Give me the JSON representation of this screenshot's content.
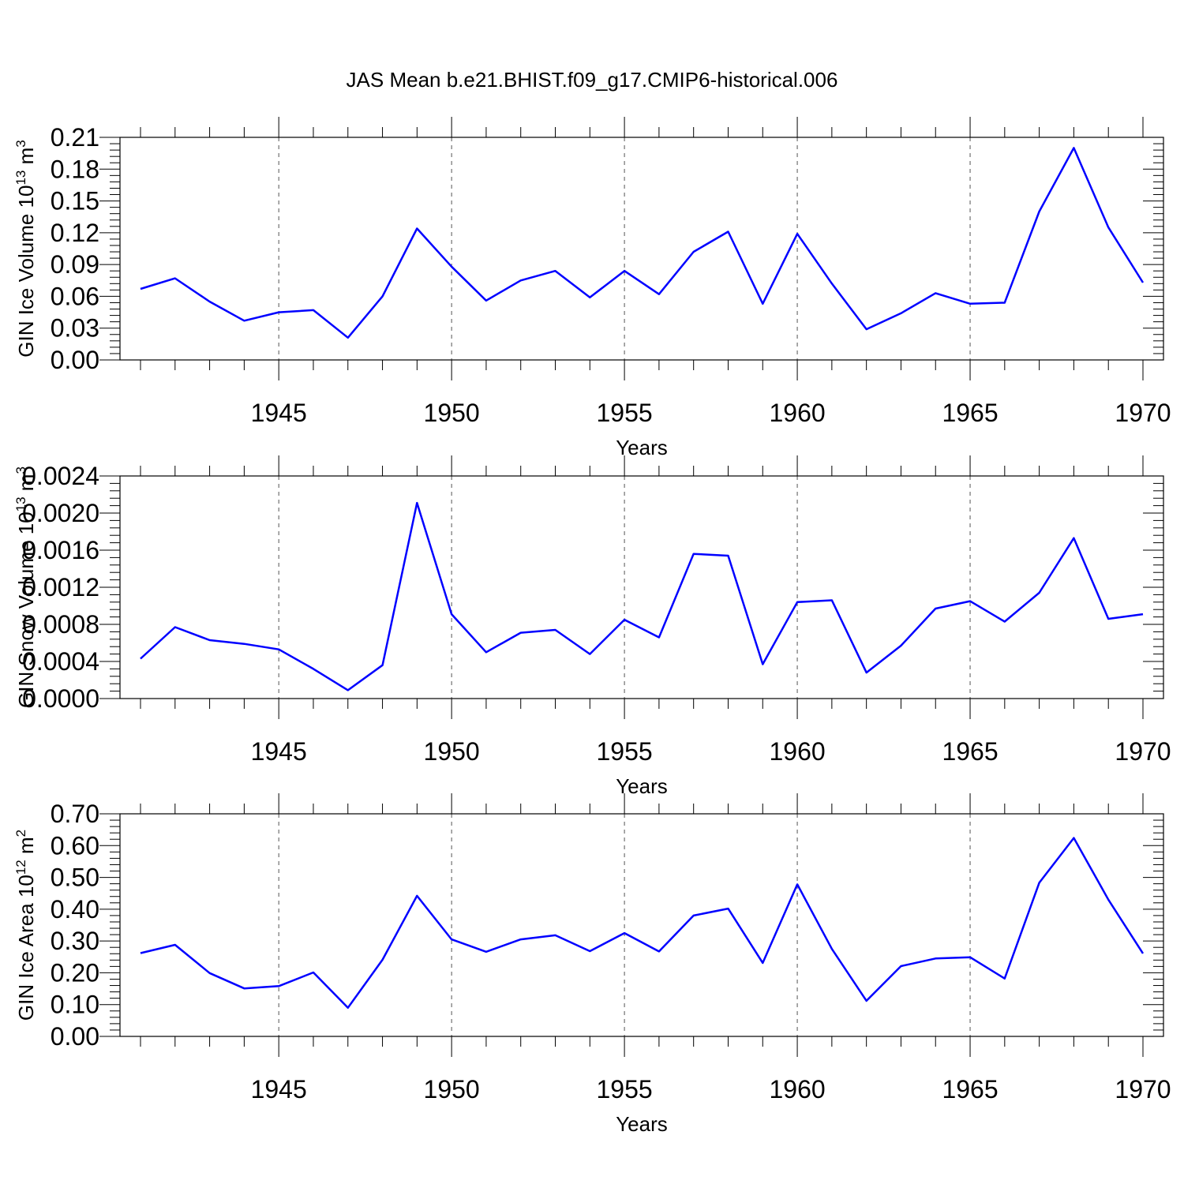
{
  "title": "JAS Mean b.e21.BHIST.f09_g17.CMIP6-historical.006",
  "colors": {
    "line": "#0000ff",
    "axis": "#000000",
    "grid": "#555555"
  },
  "chart_data": [
    {
      "type": "line",
      "ylabel": "GIN Ice Volume 10",
      "ylabel_sup": "13",
      "ylabel_unit": " m",
      "ylabel_unit_sup": "3",
      "xlabel": "Years",
      "xlim": [
        1941,
        1970
      ],
      "ylim": [
        0.0,
        0.21
      ],
      "yticks": [
        "0.00",
        "0.03",
        "0.06",
        "0.09",
        "0.12",
        "0.15",
        "0.18",
        "0.21"
      ],
      "xticks": [
        "1945",
        "1950",
        "1955",
        "1960",
        "1965",
        "1970"
      ],
      "grid_x": [
        1945,
        1950,
        1955,
        1960,
        1965
      ],
      "x": [
        1941,
        1942,
        1943,
        1944,
        1945,
        1946,
        1947,
        1948,
        1949,
        1950,
        1951,
        1952,
        1953,
        1954,
        1955,
        1956,
        1957,
        1958,
        1959,
        1960,
        1961,
        1962,
        1963,
        1964,
        1965,
        1966,
        1967,
        1968,
        1969,
        1970
      ],
      "series": [
        {
          "values": [
            0.067,
            0.077,
            0.055,
            0.037,
            0.045,
            0.047,
            0.021,
            0.06,
            0.124,
            0.088,
            0.056,
            0.075,
            0.084,
            0.059,
            0.084,
            0.062,
            0.102,
            0.121,
            0.053,
            0.119,
            0.072,
            0.029,
            0.044,
            0.063,
            0.053,
            0.054,
            0.14,
            0.2,
            0.125,
            0.073
          ]
        }
      ]
    },
    {
      "type": "line",
      "ylabel": "GIN Snow Volume 10",
      "ylabel_sup": "13",
      "ylabel_unit": " m",
      "ylabel_unit_sup": "3",
      "xlabel": "Years",
      "xlim": [
        1941,
        1970
      ],
      "ylim": [
        0.0,
        0.0024
      ],
      "yticks": [
        "0.0000",
        "0.0004",
        "0.0008",
        "0.0012",
        "0.0016",
        "0.0020",
        "0.0024"
      ],
      "xticks": [
        "1945",
        "1950",
        "1955",
        "1960",
        "1965",
        "1970"
      ],
      "grid_x": [
        1945,
        1950,
        1955,
        1960,
        1965
      ],
      "x": [
        1941,
        1942,
        1943,
        1944,
        1945,
        1946,
        1947,
        1948,
        1949,
        1950,
        1951,
        1952,
        1953,
        1954,
        1955,
        1956,
        1957,
        1958,
        1959,
        1960,
        1961,
        1962,
        1963,
        1964,
        1965,
        1966,
        1967,
        1968,
        1969,
        1970
      ],
      "series": [
        {
          "values": [
            0.00043,
            0.00077,
            0.00063,
            0.00059,
            0.00053,
            0.00032,
            9e-05,
            0.00036,
            0.00211,
            0.00091,
            0.0005,
            0.00071,
            0.00074,
            0.00048,
            0.00085,
            0.00066,
            0.00156,
            0.00154,
            0.00037,
            0.00104,
            0.00106,
            0.00028,
            0.00057,
            0.00097,
            0.00105,
            0.00083,
            0.00114,
            0.00173,
            0.00086,
            0.00091
          ]
        }
      ]
    },
    {
      "type": "line",
      "ylabel": "GIN Ice Area 10",
      "ylabel_sup": "12",
      "ylabel_unit": " m",
      "ylabel_unit_sup": "2",
      "xlabel": "Years",
      "xlim": [
        1941,
        1970
      ],
      "ylim": [
        0.0,
        0.7
      ],
      "yticks": [
        "0.00",
        "0.10",
        "0.20",
        "0.30",
        "0.40",
        "0.50",
        "0.60",
        "0.70"
      ],
      "xticks": [
        "1945",
        "1950",
        "1955",
        "1960",
        "1965",
        "1970"
      ],
      "grid_x": [
        1945,
        1950,
        1955,
        1960,
        1965
      ],
      "x": [
        1941,
        1942,
        1943,
        1944,
        1945,
        1946,
        1947,
        1948,
        1949,
        1950,
        1951,
        1952,
        1953,
        1954,
        1955,
        1956,
        1957,
        1958,
        1959,
        1960,
        1961,
        1962,
        1963,
        1964,
        1965,
        1966,
        1967,
        1968,
        1969,
        1970
      ],
      "series": [
        {
          "values": [
            0.262,
            0.288,
            0.199,
            0.151,
            0.158,
            0.201,
            0.09,
            0.241,
            0.442,
            0.305,
            0.266,
            0.305,
            0.318,
            0.268,
            0.325,
            0.267,
            0.38,
            0.402,
            0.231,
            0.478,
            0.275,
            0.112,
            0.221,
            0.245,
            0.249,
            0.182,
            0.483,
            0.624,
            0.43,
            0.261
          ]
        }
      ]
    }
  ]
}
